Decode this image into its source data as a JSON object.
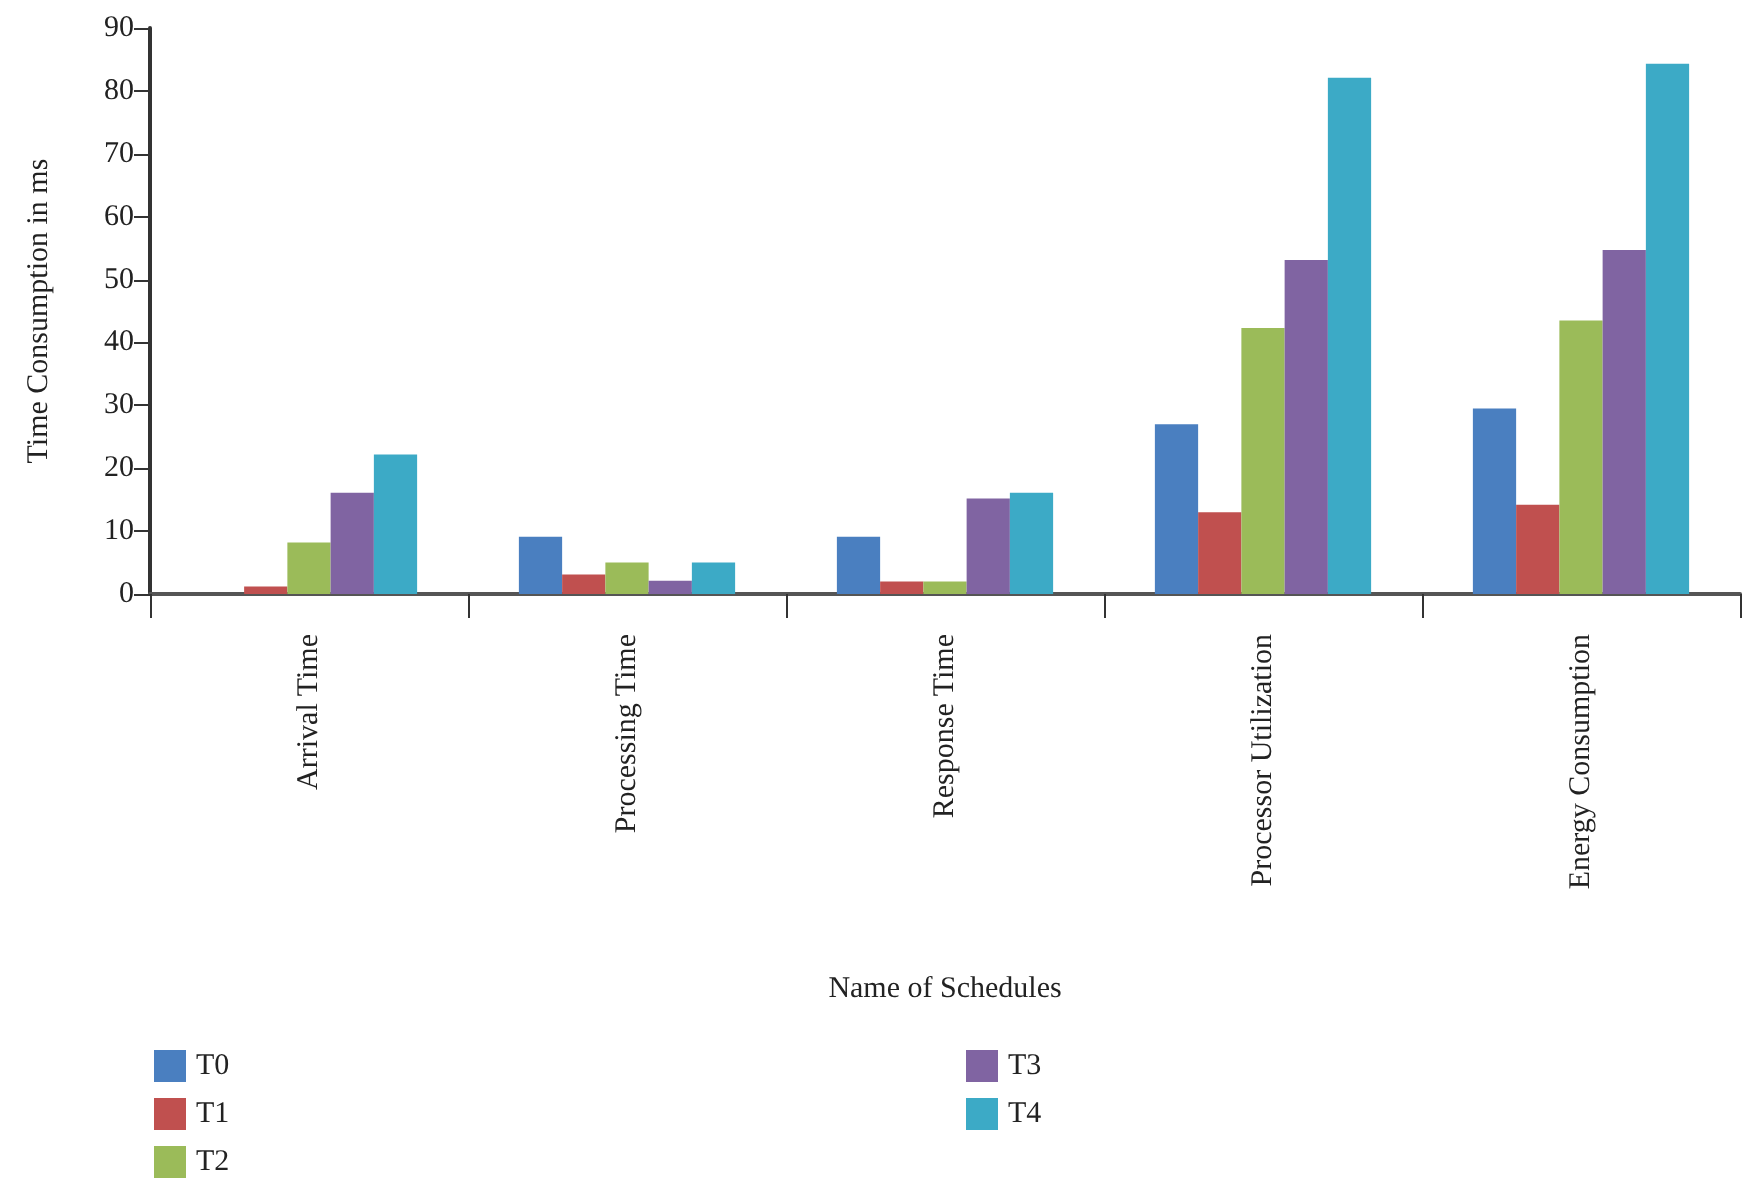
{
  "chart_data": {
    "type": "bar",
    "xlabel": "Name of Schedules",
    "ylabel": "Time Consumption in ms",
    "categories": [
      "Arrival Time",
      "Processing Time",
      "Response Time",
      "Processor Utilization",
      "Energy Consumption"
    ],
    "series": [
      {
        "name": "T0",
        "color": "#4a7fc0",
        "values": [
          0,
          9.1,
          9.1,
          27,
          29.5
        ]
      },
      {
        "name": "T1",
        "color": "#c0504f",
        "values": [
          1.2,
          3.1,
          2,
          13,
          14.2
        ]
      },
      {
        "name": "T2",
        "color": "#9bbb59",
        "values": [
          8.2,
          5,
          2,
          42.3,
          43.5
        ]
      },
      {
        "name": "T3",
        "color": "#8064a2",
        "values": [
          16.1,
          2.1,
          15.2,
          53.1,
          54.7
        ]
      },
      {
        "name": "T4",
        "color": "#3caac6",
        "values": [
          22.2,
          5,
          16.1,
          82.1,
          84.3
        ]
      }
    ],
    "ylim": [
      0,
      90
    ],
    "yticks": [
      0,
      10,
      20,
      30,
      40,
      50,
      60,
      70,
      80,
      90
    ],
    "grid": false,
    "legend": "bottom"
  }
}
